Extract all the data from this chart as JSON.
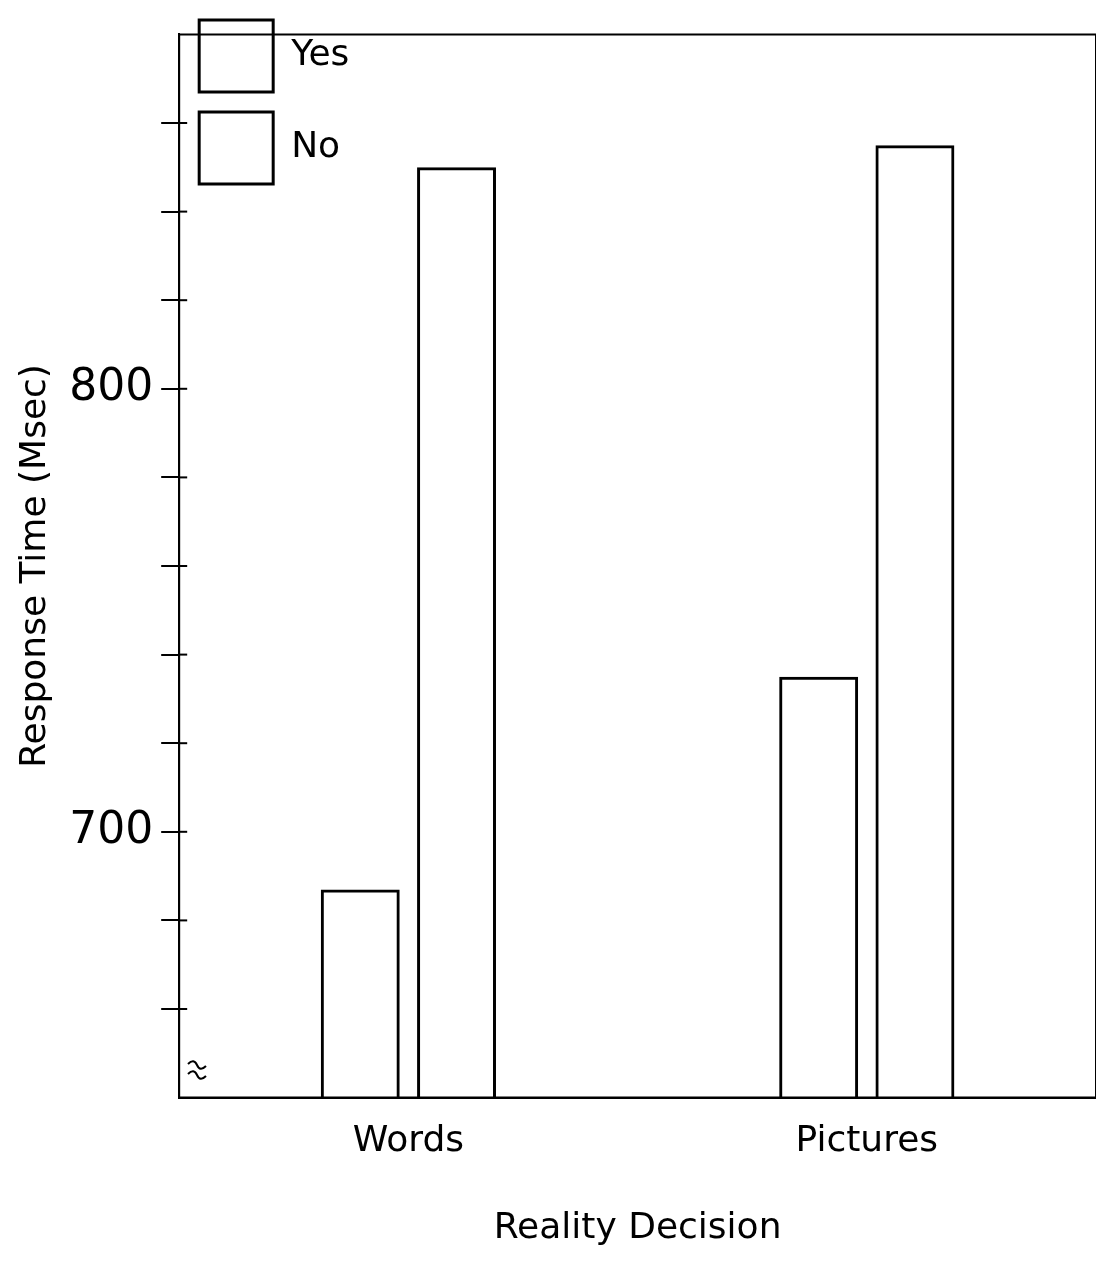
{
  "chart_data": {
    "type": "bar",
    "xlabel": "Reality Decision",
    "ylabel": "Response Time (Msec)",
    "categories": [
      "Words",
      "Pictures"
    ],
    "series": [
      {
        "name": "Yes",
        "color": "#000000",
        "values": [
          687,
          735
        ]
      },
      {
        "name": "No",
        "color": "#000000",
        "values": [
          850,
          855
        ]
      }
    ],
    "ylim": [
      640,
      880
    ],
    "yticks": [
      {
        "value": 660,
        "label": null
      },
      {
        "value": 680,
        "label": null
      },
      700,
      {
        "value": 720,
        "label": null
      },
      {
        "value": 740,
        "label": null
      },
      {
        "value": 760,
        "label": null
      },
      {
        "value": 780,
        "label": null
      },
      800,
      {
        "value": 820,
        "label": null
      },
      {
        "value": 840,
        "label": null
      },
      {
        "value": 860,
        "label": null
      }
    ],
    "legend": "top left"
  }
}
